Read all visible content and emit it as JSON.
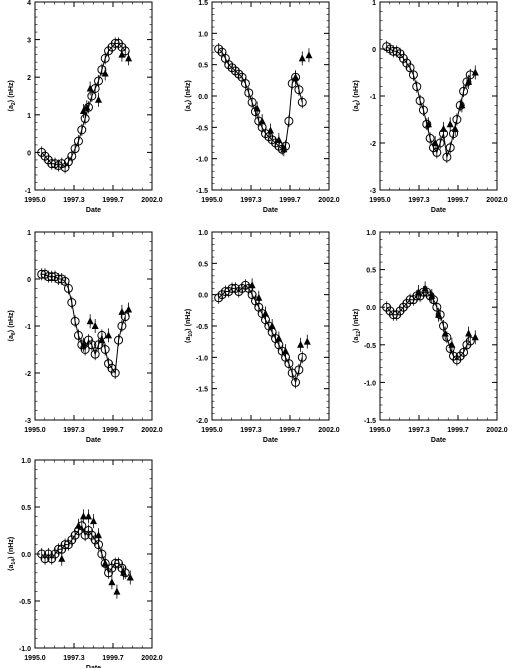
{
  "chart_data": [
    {
      "type": "scatter",
      "ylabel_main": "⟨a",
      "ylabel_sub": "2",
      "ylabel_tail": "⟩ (nHz)",
      "xlabel": "Date",
      "xlim": [
        1995.0,
        2002.0
      ],
      "ylim": [
        -1,
        4
      ],
      "yticks": [
        "-1",
        "0",
        "1",
        "2",
        "3",
        "4"
      ],
      "xticks": [
        "1995.0",
        "1997.3",
        "1999.7",
        "2002.0"
      ],
      "x": [
        1995.4,
        1995.6,
        1995.8,
        1996.0,
        1996.2,
        1996.4,
        1996.6,
        1996.8,
        1997.0,
        1997.2,
        1997.4,
        1997.6,
        1997.8,
        1998.0,
        1998.2,
        1998.4,
        1998.6,
        1998.8,
        1999.0,
        1999.2,
        1999.4,
        1999.6,
        1999.8,
        2000.0,
        2000.2,
        2000.4
      ],
      "circles": [
        0.0,
        -0.1,
        -0.2,
        -0.3,
        -0.3,
        -0.35,
        -0.3,
        -0.4,
        -0.25,
        -0.1,
        0.1,
        0.3,
        0.6,
        0.9,
        1.2,
        1.5,
        1.7,
        1.9,
        2.2,
        2.5,
        2.7,
        2.8,
        2.9,
        2.9,
        2.8,
        2.7
      ],
      "triangles": [
        [
          1997.9,
          1.1
        ],
        [
          1998.1,
          1.2
        ],
        [
          1998.3,
          1.7
        ],
        [
          1998.8,
          1.4
        ],
        [
          1999.2,
          2.1
        ],
        [
          2000.2,
          2.6
        ],
        [
          2000.6,
          2.5
        ]
      ]
    },
    {
      "type": "scatter",
      "ylabel_main": "⟨a",
      "ylabel_sub": "4",
      "ylabel_tail": "⟩ (nHz)",
      "xlabel": "Date",
      "xlim": [
        1995.0,
        2002.0
      ],
      "ylim": [
        -1.5,
        1.5
      ],
      "yticks": [
        "-1.5",
        "-1.0",
        "-0.5",
        "0.0",
        "0.5",
        "1.0",
        "1.5"
      ],
      "xticks": [
        "1995.0",
        "1997.3",
        "1999.7",
        "2002.0"
      ],
      "x": [
        1995.4,
        1995.6,
        1995.8,
        1996.0,
        1996.2,
        1996.4,
        1996.6,
        1996.8,
        1997.0,
        1997.2,
        1997.4,
        1997.6,
        1997.8,
        1998.0,
        1998.2,
        1998.4,
        1998.6,
        1998.8,
        1999.0,
        1999.2,
        1999.4,
        1999.6,
        1999.8,
        2000.0,
        2000.2,
        2000.4
      ],
      "circles": [
        0.75,
        0.7,
        0.6,
        0.5,
        0.45,
        0.4,
        0.35,
        0.3,
        0.2,
        0.05,
        -0.1,
        -0.25,
        -0.4,
        -0.5,
        -0.6,
        -0.65,
        -0.7,
        -0.75,
        -0.8,
        -0.85,
        -0.8,
        -0.4,
        0.2,
        0.3,
        0.1,
        -0.1
      ],
      "triangles": [
        [
          1997.7,
          -0.2
        ],
        [
          1998.0,
          -0.4
        ],
        [
          1998.5,
          -0.55
        ],
        [
          1999.0,
          -0.7
        ],
        [
          1999.3,
          -0.85
        ],
        [
          2000.0,
          0.3
        ],
        [
          2000.4,
          0.6
        ],
        [
          2000.8,
          0.65
        ]
      ]
    },
    {
      "type": "scatter",
      "ylabel_main": "⟨a",
      "ylabel_sub": "6",
      "ylabel_tail": "⟩ (nHz)",
      "xlabel": "Date",
      "xlim": [
        1995.0,
        2002.0
      ],
      "ylim": [
        -3,
        1
      ],
      "yticks": [
        "-3",
        "-2",
        "-1",
        "0",
        "1"
      ],
      "xticks": [
        "1995.0",
        "1997.3",
        "1999.7",
        "2002.0"
      ],
      "x": [
        1995.4,
        1995.6,
        1995.8,
        1996.0,
        1996.2,
        1996.4,
        1996.6,
        1996.8,
        1997.0,
        1997.2,
        1997.4,
        1997.6,
        1997.8,
        1998.0,
        1998.2,
        1998.4,
        1998.6,
        1998.8,
        1999.0,
        1999.2,
        1999.4,
        1999.6,
        1999.8,
        2000.0,
        2000.2,
        2000.4
      ],
      "circles": [
        0.05,
        0.0,
        -0.05,
        -0.05,
        -0.1,
        -0.2,
        -0.3,
        -0.4,
        -0.55,
        -0.8,
        -1.1,
        -1.3,
        -1.6,
        -1.9,
        -2.1,
        -2.2,
        -2.0,
        -1.8,
        -2.3,
        -2.1,
        -1.8,
        -1.5,
        -1.2,
        -0.9,
        -0.7,
        -0.55
      ],
      "triangles": [
        [
          1997.9,
          -1.6
        ],
        [
          1998.3,
          -2.0
        ],
        [
          1998.8,
          -1.7
        ],
        [
          1999.2,
          -1.6
        ],
        [
          1999.5,
          -1.7
        ],
        [
          1999.9,
          -1.2
        ],
        [
          2000.3,
          -0.7
        ],
        [
          2000.7,
          -0.5
        ]
      ]
    },
    {
      "type": "scatter",
      "ylabel_main": "⟨a",
      "ylabel_sub": "8",
      "ylabel_tail": "⟩ (nHz)",
      "xlabel": "Date",
      "xlim": [
        1995.0,
        2002.0
      ],
      "ylim": [
        -3,
        1
      ],
      "yticks": [
        "-3",
        "-2",
        "-1",
        "0",
        "1"
      ],
      "xticks": [
        "1995.0",
        "1997.3",
        "1999.7",
        "2002.0"
      ],
      "x": [
        1995.4,
        1995.6,
        1995.8,
        1996.0,
        1996.2,
        1996.4,
        1996.6,
        1996.8,
        1997.0,
        1997.2,
        1997.4,
        1997.6,
        1997.8,
        1998.0,
        1998.2,
        1998.4,
        1998.6,
        1998.8,
        1999.0,
        1999.2,
        1999.4,
        1999.6,
        1999.8,
        2000.0,
        2000.2,
        2000.4
      ],
      "circles": [
        0.1,
        0.1,
        0.05,
        0.05,
        0.05,
        0.0,
        0.0,
        -0.05,
        -0.2,
        -0.5,
        -0.9,
        -1.2,
        -1.4,
        -1.5,
        -1.3,
        -1.4,
        -1.6,
        -1.4,
        -1.2,
        -1.5,
        -1.8,
        -1.9,
        -2.0,
        -1.3,
        -1.0,
        -0.8
      ],
      "triangles": [
        [
          1997.9,
          -1.4
        ],
        [
          1998.3,
          -0.9
        ],
        [
          1998.6,
          -1.0
        ],
        [
          1999.0,
          -1.3
        ],
        [
          1999.4,
          -1.2
        ],
        [
          2000.2,
          -0.7
        ],
        [
          2000.6,
          -0.65
        ]
      ]
    },
    {
      "type": "scatter",
      "ylabel_main": "⟨a",
      "ylabel_sub": "10",
      "ylabel_tail": "⟩ (nHz)",
      "xlabel": "Date",
      "xlim": [
        1995.0,
        2002.0
      ],
      "ylim": [
        -2,
        1
      ],
      "yticks": [
        "-2.0",
        "-1.5",
        "-1.0",
        "-0.5",
        "0.0",
        "0.5",
        "1.0"
      ],
      "xticks": [
        "1995.0",
        "1997.3",
        "1999.7",
        "2002.0"
      ],
      "x": [
        1995.4,
        1995.6,
        1995.8,
        1996.0,
        1996.2,
        1996.4,
        1996.6,
        1996.8,
        1997.0,
        1997.2,
        1997.4,
        1997.6,
        1997.8,
        1998.0,
        1998.2,
        1998.4,
        1998.6,
        1998.8,
        1999.0,
        1999.2,
        1999.4,
        1999.6,
        1999.8,
        2000.0,
        2000.2,
        2000.4
      ],
      "circles": [
        -0.05,
        0.0,
        0.05,
        0.05,
        0.1,
        0.1,
        0.05,
        0.1,
        0.15,
        0.1,
        0.0,
        -0.1,
        -0.2,
        -0.3,
        -0.4,
        -0.5,
        -0.6,
        -0.7,
        -0.8,
        -0.9,
        -1.0,
        -1.1,
        -1.25,
        -1.4,
        -1.2,
        -1.0
      ],
      "triangles": [
        [
          1997.4,
          0.15
        ],
        [
          1997.8,
          -0.05
        ],
        [
          1998.2,
          -0.3
        ],
        [
          1998.6,
          -0.5
        ],
        [
          1999.0,
          -0.7
        ],
        [
          1999.4,
          -0.9
        ],
        [
          2000.3,
          -0.8
        ],
        [
          2000.7,
          -0.75
        ]
      ]
    },
    {
      "type": "scatter",
      "ylabel_main": "⟨a",
      "ylabel_sub": "12",
      "ylabel_tail": "⟩ (nHz)",
      "xlabel": "Date",
      "xlim": [
        1995.0,
        2002.0
      ],
      "ylim": [
        -1.5,
        1
      ],
      "yticks": [
        "-1.5",
        "-1.0",
        "-0.5",
        "0.0",
        "0.5",
        "1.0"
      ],
      "xticks": [
        "1995.0",
        "1997.3",
        "1999.7",
        "2002.0"
      ],
      "x": [
        1995.4,
        1995.6,
        1995.8,
        1996.0,
        1996.2,
        1996.4,
        1996.6,
        1996.8,
        1997.0,
        1997.2,
        1997.4,
        1997.6,
        1997.8,
        1998.0,
        1998.2,
        1998.4,
        1998.6,
        1998.8,
        1999.0,
        1999.2,
        1999.4,
        1999.6,
        1999.8,
        2000.0,
        2000.2,
        2000.4
      ],
      "circles": [
        0.0,
        -0.05,
        -0.1,
        -0.1,
        -0.05,
        0.0,
        0.05,
        0.1,
        0.1,
        0.15,
        0.15,
        0.2,
        0.2,
        0.15,
        0.1,
        0.0,
        -0.1,
        -0.25,
        -0.4,
        -0.55,
        -0.65,
        -0.7,
        -0.65,
        -0.6,
        -0.5,
        -0.45
      ],
      "triangles": [
        [
          1997.3,
          0.2
        ],
        [
          1997.7,
          0.25
        ],
        [
          1998.1,
          0.15
        ],
        [
          1998.5,
          -0.1
        ],
        [
          1998.9,
          -0.35
        ],
        [
          1999.3,
          -0.5
        ],
        [
          2000.3,
          -0.35
        ],
        [
          2000.7,
          -0.4
        ]
      ]
    },
    {
      "type": "scatter",
      "ylabel_main": "⟨a",
      "ylabel_sub": "14",
      "ylabel_tail": "⟩ (nHz)",
      "xlabel": "Date",
      "xlim": [
        1995.0,
        2002.0
      ],
      "ylim": [
        -1.0,
        1.0
      ],
      "yticks": [
        "-1.0",
        "-0.5",
        "0.0",
        "0.5",
        "1.0"
      ],
      "xticks": [
        "1995.0",
        "1997.3",
        "1999.7",
        "2002.0"
      ],
      "x": [
        1995.4,
        1995.6,
        1995.8,
        1996.0,
        1996.2,
        1996.4,
        1996.6,
        1996.8,
        1997.0,
        1997.2,
        1997.4,
        1997.6,
        1997.8,
        1998.0,
        1998.2,
        1998.4,
        1998.6,
        1998.8,
        1999.0,
        1999.2,
        1999.4,
        1999.6,
        1999.8,
        2000.0,
        2000.2,
        2000.4
      ],
      "circles": [
        0.0,
        -0.05,
        0.0,
        -0.05,
        0.0,
        0.05,
        0.05,
        0.1,
        0.1,
        0.15,
        0.2,
        0.25,
        0.3,
        0.2,
        0.25,
        0.2,
        0.15,
        0.1,
        0.0,
        -0.1,
        -0.2,
        -0.15,
        -0.1,
        -0.1,
        -0.15,
        -0.2
      ],
      "triangles": [
        [
          1996.6,
          -0.05
        ],
        [
          1997.6,
          0.3
        ],
        [
          1997.9,
          0.4
        ],
        [
          1998.2,
          0.4
        ],
        [
          1998.5,
          0.35
        ],
        [
          1998.8,
          0.2
        ],
        [
          1999.2,
          -0.1
        ],
        [
          1999.6,
          -0.3
        ],
        [
          1999.9,
          -0.4
        ],
        [
          2000.3,
          -0.2
        ],
        [
          2000.7,
          -0.25
        ]
      ]
    }
  ]
}
